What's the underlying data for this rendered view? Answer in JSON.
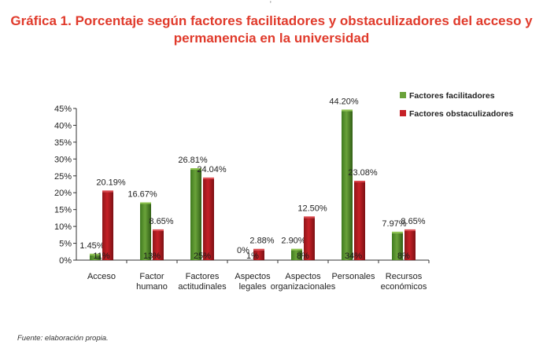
{
  "title": {
    "line1": "Gráfica 1. Porcentaje según factores facilitadores y obstaculizadores del acceso y",
    "line2": "permanencia en la universidad"
  },
  "top_mark": "'",
  "source": "Fuente: elaboración propia.",
  "colors": {
    "title": "#e03a2b",
    "facilitadores": "#6aa23a",
    "obstaculizadores": "#c62127"
  },
  "chart_data": {
    "type": "bar",
    "categories": [
      [
        "Acceso"
      ],
      [
        "Factor",
        "humano"
      ],
      [
        "Factores",
        "actitudinales"
      ],
      [
        "Aspectos",
        "legales"
      ],
      [
        "Aspectos",
        "organizacionales"
      ],
      [
        "Personales"
      ],
      [
        "Recursos",
        "económicos"
      ]
    ],
    "series": [
      {
        "name": "Factores facilitadores",
        "values": [
          1.45,
          16.67,
          26.81,
          0,
          2.9,
          44.2,
          7.97
        ],
        "labels": [
          "1.45%",
          "16.67%",
          "26.81%",
          "0%",
          "2.90%",
          "44.20%",
          "7.97%"
        ]
      },
      {
        "name": "Factores obstaculizadores",
        "values": [
          20.19,
          8.65,
          24.04,
          2.88,
          12.5,
          23.08,
          8.65
        ],
        "labels": [
          "20.19%",
          "8.65%",
          "24.04%",
          "2.88%",
          "12.50%",
          "23.08%",
          "8.65%"
        ]
      }
    ],
    "base_labels": [
      "11%",
      "13%",
      "25%",
      "1%",
      "8%",
      "34%",
      "8%"
    ],
    "yticks": [
      0,
      5,
      10,
      15,
      20,
      25,
      30,
      35,
      40,
      45
    ],
    "ytick_labels": [
      "0%",
      "5%",
      "10%",
      "15%",
      "20%",
      "25%",
      "30%",
      "35%",
      "40%",
      "45%"
    ],
    "ylim": [
      0,
      45
    ],
    "legend_position": "top-right",
    "grid": false
  }
}
